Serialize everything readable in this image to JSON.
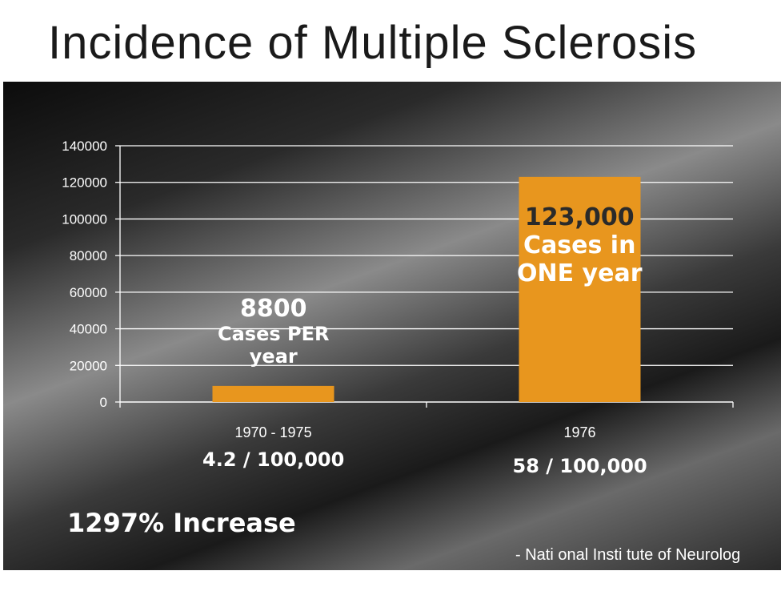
{
  "slide": {
    "title": "Incidence of Multiple Sclerosis"
  },
  "colors": {
    "bar": "#e8961e",
    "axis": "#ffffff",
    "text": "#ffffff",
    "annotation_dark": "#2a2a2a"
  },
  "chart_data": {
    "type": "bar",
    "categories": [
      "1970 - 1975",
      "1976"
    ],
    "values": [
      8800,
      123000
    ],
    "ylim": [
      0,
      140000
    ],
    "yticks": [
      0,
      20000,
      40000,
      60000,
      80000,
      100000,
      120000,
      140000
    ],
    "grid": true,
    "annotations": [
      {
        "lines": [
          "8800",
          "Cases PER",
          "year"
        ]
      },
      {
        "lines": [
          "123,000",
          "Cases in",
          "ONE year"
        ]
      }
    ]
  },
  "rates": [
    "4.2 / 100,000",
    "58 / 100,000"
  ],
  "increase": "1297% Increase",
  "source": "- Nati  onal Insti  tute of Neurolog"
}
